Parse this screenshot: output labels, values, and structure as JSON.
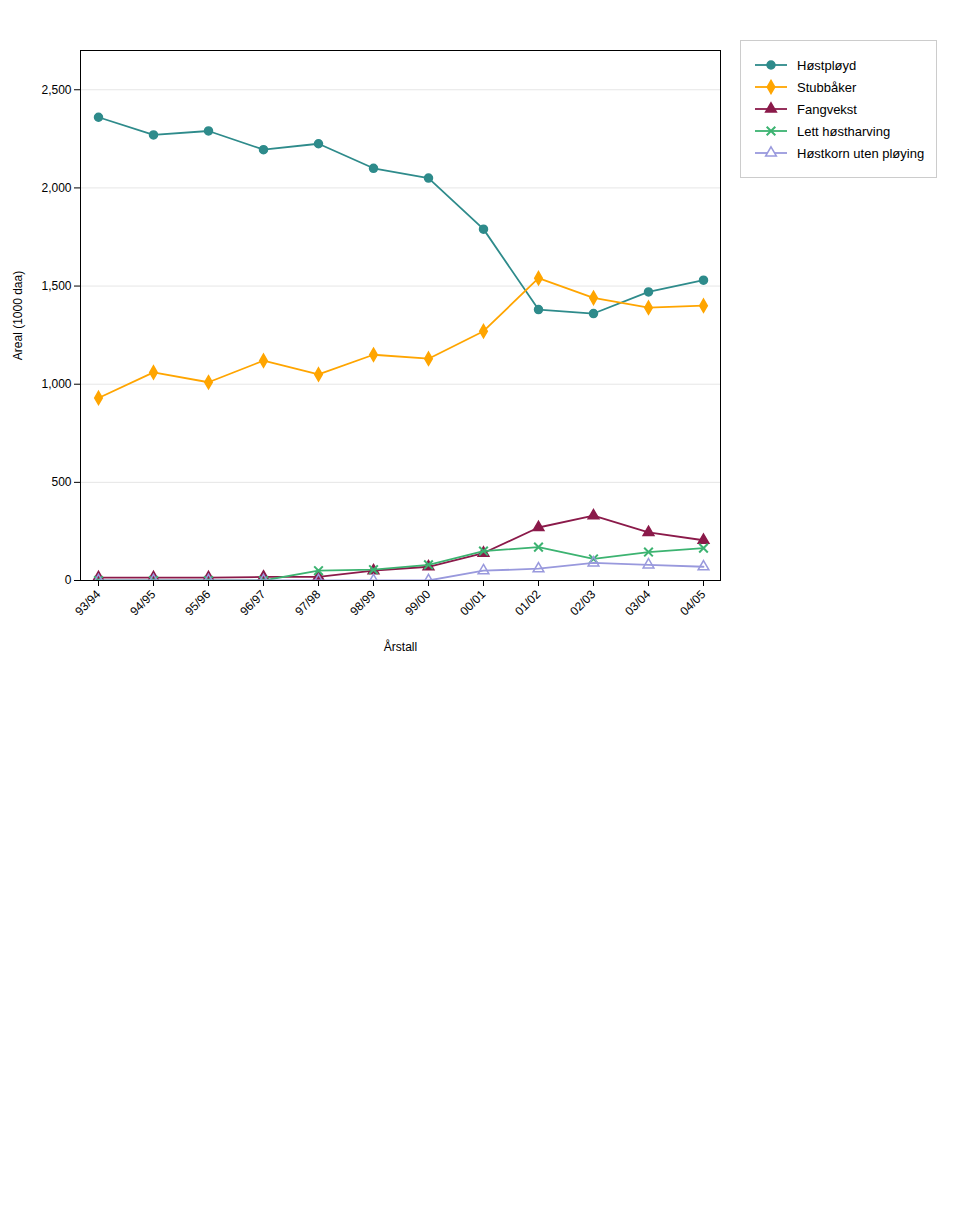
{
  "chart_data": {
    "type": "line",
    "xlabel": "Årstall",
    "ylabel": "Areal (1000 daa)",
    "categories": [
      "93/94",
      "94/95",
      "95/96",
      "96/97",
      "97/98",
      "98/99",
      "99/00",
      "00/01",
      "01/02",
      "02/03",
      "03/04",
      "04/05"
    ],
    "series": [
      {
        "name": "Høstpløyd",
        "color": "#2E8B8B",
        "marker": "circle",
        "values": [
          2360,
          2270,
          2290,
          2195,
          2225,
          2100,
          2050,
          1790,
          1380,
          1360,
          1470,
          1530
        ]
      },
      {
        "name": "Stubbåker",
        "color": "#FFA500",
        "marker": "diamond",
        "values": [
          930,
          1060,
          1010,
          1120,
          1050,
          1150,
          1130,
          1270,
          1540,
          1440,
          1390,
          1400
        ]
      },
      {
        "name": "Fangvekst",
        "color": "#8B1A4A",
        "marker": "triangle",
        "values": [
          15,
          15,
          15,
          18,
          18,
          50,
          70,
          140,
          270,
          330,
          245,
          205
        ]
      },
      {
        "name": "Lett høstharving",
        "color": "#3CB371",
        "marker": "x",
        "values": [
          0,
          0,
          0,
          0,
          50,
          55,
          80,
          150,
          170,
          110,
          145,
          165
        ]
      },
      {
        "name": "Høstkorn uten pløying",
        "color": "#9999DD",
        "marker": "triangle-open",
        "values": [
          0,
          0,
          0,
          0,
          0,
          0,
          0,
          50,
          60,
          90,
          80,
          70
        ]
      }
    ],
    "ylim": [
      0,
      2700
    ],
    "yticks": [
      0,
      500,
      1000,
      1500,
      2000,
      2500
    ],
    "grid": true,
    "legend": "right"
  }
}
